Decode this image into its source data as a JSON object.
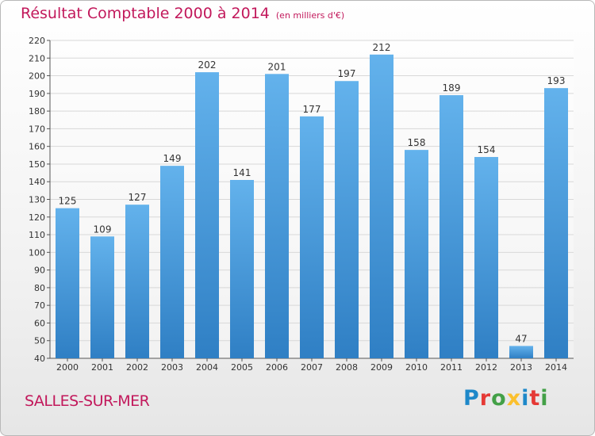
{
  "header": {
    "title": "Résultat Comptable 2000 à 2014",
    "unit": "(en milliers d'€)"
  },
  "footer": {
    "place": "SALLES-SUR-MER",
    "logo_letters": [
      {
        "ch": "P",
        "color": "#1e88c9"
      },
      {
        "ch": "r",
        "color": "#e53935"
      },
      {
        "ch": "o",
        "color": "#43a047"
      },
      {
        "ch": "x",
        "color": "#fbc02d"
      },
      {
        "ch": "i",
        "color": "#1e88c9"
      },
      {
        "ch": "t",
        "color": "#e53935"
      },
      {
        "ch": "i",
        "color": "#43a047"
      }
    ]
  },
  "colors": {
    "bar_light": "#63b2ec",
    "bar_dark": "#2f7fc4",
    "grid": "#d8d8d8",
    "accent": "#c2185b"
  },
  "chart_data": {
    "type": "bar",
    "title": "Résultat Comptable 2000 à 2014",
    "subtitle": "(en milliers d'€)",
    "categories": [
      "2000",
      "2001",
      "2002",
      "2003",
      "2004",
      "2005",
      "2006",
      "2007",
      "2008",
      "2009",
      "2010",
      "2011",
      "2012",
      "2013",
      "2014"
    ],
    "values": [
      125,
      109,
      127,
      149,
      202,
      141,
      201,
      177,
      197,
      212,
      158,
      189,
      154,
      47,
      193
    ],
    "ylim": [
      40,
      220
    ],
    "ytick_step": 10,
    "grid": true,
    "legend": "none"
  }
}
